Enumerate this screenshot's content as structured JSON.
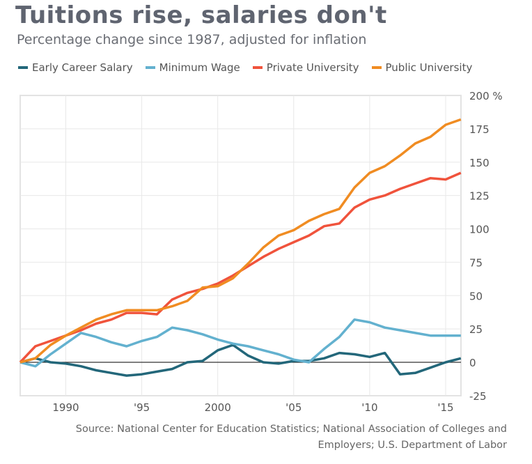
{
  "chart_data": {
    "type": "line",
    "title": "Tuitions rise, salaries don't",
    "subtitle": "Percentage change since 1987, adjusted for inflation",
    "xlabel": "",
    "ylabel": "",
    "xlim": [
      1987,
      2016
    ],
    "ylim": [
      -25,
      200
    ],
    "yunit": "%",
    "grid": true,
    "legend": "top",
    "x_ticks": [
      1990,
      1995,
      2000,
      2005,
      2010,
      2015
    ],
    "x_tick_labels": [
      "1990",
      "'95",
      "2000",
      "'05",
      "'10",
      "'15"
    ],
    "y_ticks": [
      -25,
      0,
      25,
      50,
      75,
      100,
      125,
      150,
      175,
      200
    ],
    "y_tick_labels": [
      "-25",
      "0",
      "25",
      "50",
      "75",
      "100",
      "125",
      "150",
      "175",
      "200 %"
    ],
    "x": [
      1987,
      1988,
      1989,
      1990,
      1991,
      1992,
      1993,
      1994,
      1995,
      1996,
      1997,
      1998,
      1999,
      2000,
      2001,
      2002,
      2003,
      2004,
      2005,
      2006,
      2007,
      2008,
      2009,
      2010,
      2011,
      2012,
      2013,
      2014,
      2015,
      2016
    ],
    "series": [
      {
        "name": "Early Career Salary",
        "color": "#23677a",
        "values": [
          0,
          3,
          0,
          -1,
          -3,
          -6,
          -8,
          -10,
          -9,
          -7,
          -5,
          0,
          1,
          9,
          13,
          5,
          0,
          -1,
          1,
          1,
          3,
          7,
          6,
          4,
          7,
          -9,
          -8,
          -4,
          0,
          3
        ]
      },
      {
        "name": "Minimum Wage",
        "color": "#63b1cf",
        "values": [
          0,
          -3,
          6,
          14,
          22,
          19,
          15,
          12,
          16,
          19,
          26,
          24,
          21,
          17,
          14,
          12,
          9,
          6,
          2,
          0,
          10,
          19,
          32,
          30,
          26,
          24,
          22,
          20,
          20,
          20
        ]
      },
      {
        "name": "Private University",
        "color": "#f0533c",
        "values": [
          0,
          12,
          16,
          20,
          24,
          29,
          32,
          37,
          37,
          36,
          47,
          52,
          55,
          59,
          65,
          72,
          79,
          85,
          90,
          95,
          102,
          104,
          116,
          122,
          125,
          130,
          134,
          138,
          137,
          142
        ]
      },
      {
        "name": "Public University",
        "color": "#f08c22",
        "values": [
          0,
          3,
          13,
          20,
          26,
          32,
          36,
          39,
          39,
          39,
          42,
          46,
          56,
          57,
          63,
          74,
          86,
          95,
          99,
          106,
          111,
          115,
          131,
          142,
          147,
          155,
          164,
          169,
          178,
          182
        ]
      }
    ],
    "source": "Source: National Center for Education Statistics; National Association of Colleges and Employers; U.S. Department of Labor"
  }
}
